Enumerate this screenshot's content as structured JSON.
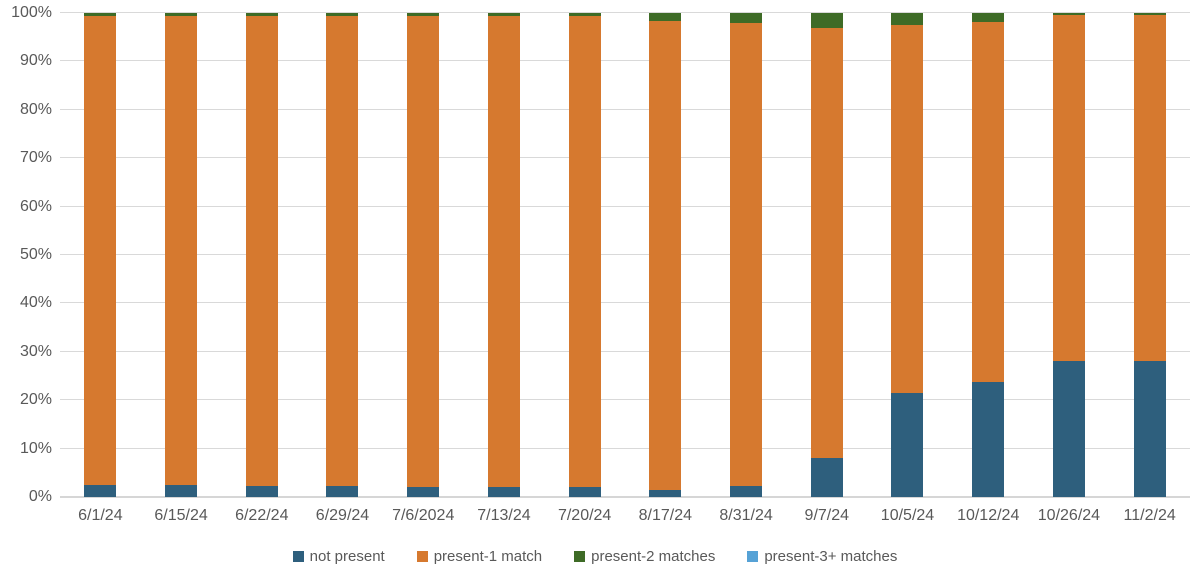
{
  "chart_style": {
    "background": "#FFFFFF",
    "axis_text_color": "#595959",
    "gridline_color": "#D9D9D9",
    "zero_axis_line_color": "#D6D6D6"
  },
  "chart_data": {
    "type": "bar",
    "subtype": "stacked-100-percent-column",
    "title": "",
    "xlabel": "",
    "ylabel": "",
    "ylim": [
      0,
      100
    ],
    "ytick_step": 10,
    "ytick_labels": [
      "0%",
      "10%",
      "20%",
      "30%",
      "40%",
      "50%",
      "60%",
      "70%",
      "80%",
      "90%",
      "100%"
    ],
    "grid": true,
    "legend_position": "bottom",
    "categories": [
      "6/1/24",
      "6/15/24",
      "6/22/24",
      "6/29/24",
      "7/6/2024",
      "7/13/24",
      "7/20/24",
      "8/17/24",
      "8/31/24",
      "9/7/24",
      "10/5/24",
      "10/12/24",
      "10/26/24",
      "11/2/24"
    ],
    "series": [
      {
        "name": "not present",
        "color": "#2E5F7D",
        "values": [
          2.5,
          2.5,
          2.2,
          2.2,
          2.1,
          2.1,
          2.0,
          1.4,
          2.2,
          8.1,
          21.5,
          23.8,
          28.1,
          28.1
        ]
      },
      {
        "name": "present-1 match",
        "color": "#D6792F",
        "values": [
          96.9,
          96.9,
          97.2,
          97.2,
          97.3,
          97.3,
          97.4,
          96.9,
          95.7,
          88.9,
          76.0,
          74.3,
          71.5,
          71.5
        ]
      },
      {
        "name": "present-2 matches",
        "color": "#3E6B26",
        "values": [
          0.6,
          0.6,
          0.6,
          0.6,
          0.6,
          0.6,
          0.6,
          1.7,
          2.1,
          3.0,
          2.5,
          1.9,
          0.4,
          0.4
        ]
      },
      {
        "name": "present-3+ matches",
        "color": "#56A2D6",
        "values": [
          0,
          0,
          0,
          0,
          0,
          0,
          0,
          0,
          0,
          0,
          0,
          0,
          0,
          0
        ]
      }
    ]
  }
}
